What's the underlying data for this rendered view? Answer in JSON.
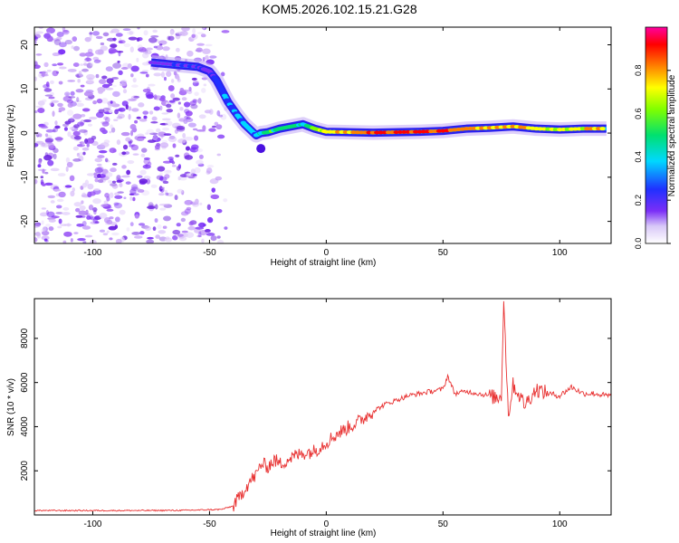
{
  "title": "KOM5.2026.102.15.21.G28",
  "colors": {
    "snr_line": "#e83030",
    "axis": "#000000",
    "scatter": "#7b2ff7"
  },
  "chart_data": [
    {
      "type": "heatmap",
      "title": "KOM5.2026.102.15.21.G28",
      "xlabel": "Height of straight line (km)",
      "ylabel": "Frequency (Hz)",
      "xlim": [
        -125,
        122
      ],
      "ylim": [
        -25,
        24
      ],
      "xticks": [
        "-100",
        "-50",
        "0",
        "50",
        "100"
      ],
      "xtick_values": [
        -100,
        -50,
        0,
        50,
        100
      ],
      "yticks": [
        "-20",
        "-10",
        "0",
        "10",
        "20"
      ],
      "ytick_values": [
        -20,
        -10,
        0,
        10,
        20
      ],
      "colorbar": {
        "label": "Normalized spectral amplitude",
        "range": [
          0,
          1
        ],
        "ticks": [
          "0.0",
          "0.2",
          "0.4",
          "0.6",
          "0.8"
        ],
        "tick_values": [
          0.0,
          0.2,
          0.4,
          0.6,
          0.8
        ]
      },
      "ridge": {
        "x": [
          -75,
          -65,
          -55,
          -50,
          -47,
          -45,
          -42,
          -38,
          -35,
          -32,
          -30,
          -28,
          -25,
          -20,
          -15,
          -10,
          -5,
          0,
          10,
          20,
          30,
          40,
          50,
          60,
          70,
          80,
          90,
          100,
          110,
          120
        ],
        "y": [
          16,
          15.5,
          15,
          14,
          12,
          10,
          7,
          4,
          2,
          0.5,
          -0.5,
          0,
          0.2,
          1,
          1.5,
          2,
          1,
          0.3,
          0.2,
          0.1,
          0.2,
          0.3,
          0.5,
          1,
          1.2,
          1.5,
          1,
          0.8,
          1,
          1
        ],
        "amplitude": [
          0.15,
          0.2,
          0.2,
          0.25,
          0.3,
          0.35,
          0.4,
          0.4,
          0.45,
          0.5,
          0.4,
          0.55,
          0.6,
          0.6,
          0.6,
          0.55,
          0.7,
          0.8,
          0.85,
          0.9,
          1.0,
          0.95,
          0.95,
          0.9,
          0.8,
          0.85,
          0.8,
          0.75,
          0.8,
          0.85
        ]
      }
    },
    {
      "type": "line",
      "xlabel": "Height of straight line (km)",
      "ylabel": "SNR (10 * v/v)",
      "xlim": [
        -125,
        122
      ],
      "ylim": [
        0,
        9800
      ],
      "xticks": [
        "-100",
        "-50",
        "0",
        "50",
        "100"
      ],
      "xtick_values": [
        -100,
        -50,
        0,
        50,
        100
      ],
      "yticks": [
        "2000",
        "4000",
        "6000",
        "8000"
      ],
      "ytick_values": [
        2000,
        4000,
        6000,
        8000
      ],
      "series": [
        {
          "name": "SNR",
          "x": [
            -125,
            -100,
            -80,
            -60,
            -45,
            -40,
            -37,
            -35,
            -32,
            -30,
            -28,
            -25,
            -22,
            -20,
            -15,
            -10,
            -5,
            0,
            5,
            10,
            15,
            20,
            25,
            30,
            35,
            40,
            45,
            50,
            52,
            55,
            60,
            65,
            70,
            73,
            75,
            76,
            78,
            80,
            85,
            90,
            95,
            100,
            105,
            110,
            115,
            120,
            122
          ],
          "y": [
            200,
            200,
            200,
            210,
            250,
            400,
            800,
            1200,
            1600,
            1800,
            2300,
            2200,
            2500,
            2300,
            2600,
            2800,
            2900,
            3300,
            3700,
            4000,
            4300,
            4700,
            5000,
            5200,
            5400,
            5500,
            5600,
            5700,
            6300,
            5500,
            5600,
            5500,
            5400,
            5300,
            5400,
            9800,
            4500,
            5900,
            5000,
            5700,
            5500,
            5400,
            5800,
            5500,
            5500,
            5400,
            5400
          ]
        }
      ]
    }
  ]
}
